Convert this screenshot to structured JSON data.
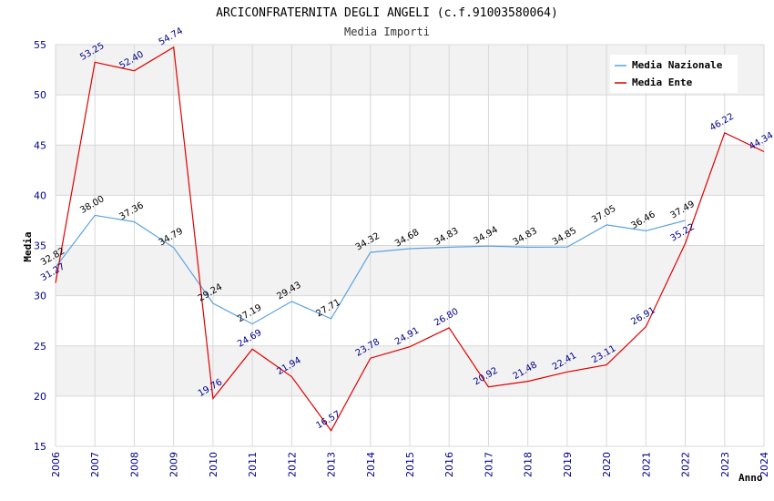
{
  "chart_data": {
    "type": "line",
    "title": "ARCICONFRATERNITA DEGLI ANGELI (c.f.91003580064)",
    "subtitle": "Media Importi",
    "xlabel": "Anno",
    "ylabel": "Media",
    "ylim": [
      15,
      55
    ],
    "yticks": [
      15,
      20,
      25,
      30,
      35,
      40,
      45,
      50,
      55
    ],
    "x": [
      2006,
      2007,
      2008,
      2009,
      2010,
      2011,
      2012,
      2013,
      2014,
      2015,
      2016,
      2017,
      2018,
      2019,
      2020,
      2021,
      2022,
      2023,
      2024
    ],
    "legend_position": "top-right",
    "grid": true,
    "series": [
      {
        "name": "Media Nazionale",
        "color": "#5ba3e0",
        "label_color": "#000000",
        "values": [
          32.82,
          38.0,
          37.36,
          34.79,
          29.24,
          27.19,
          29.43,
          27.71,
          34.32,
          34.68,
          34.83,
          34.94,
          34.83,
          34.85,
          37.05,
          36.46,
          37.49,
          null,
          null
        ],
        "labels": [
          "32.82",
          "38.00",
          "37.36",
          "34.79",
          "29.24",
          "27.19",
          "29.43",
          "27.71",
          "34.32",
          "34.68",
          "34.83",
          "34.94",
          "34.83",
          "34.85",
          "37.05",
          "36.46",
          "37.49",
          null,
          null
        ]
      },
      {
        "name": "Media Ente",
        "color": "#e00000",
        "label_color": "#00008b",
        "values": [
          31.27,
          53.25,
          52.4,
          54.74,
          19.76,
          24.69,
          21.94,
          16.57,
          23.78,
          24.91,
          26.8,
          20.92,
          21.48,
          22.41,
          23.11,
          26.91,
          35.22,
          46.22,
          44.34
        ],
        "labels": [
          "31.27",
          "53.25",
          "52.40",
          "54.74",
          "19.76",
          "24.69",
          "21.94",
          "16.57",
          "23.78",
          "24.91",
          "26.80",
          "20.92",
          "21.48",
          "22.41",
          "23.11",
          "26.91",
          "35.22",
          "46.22",
          "44.34"
        ]
      }
    ]
  }
}
